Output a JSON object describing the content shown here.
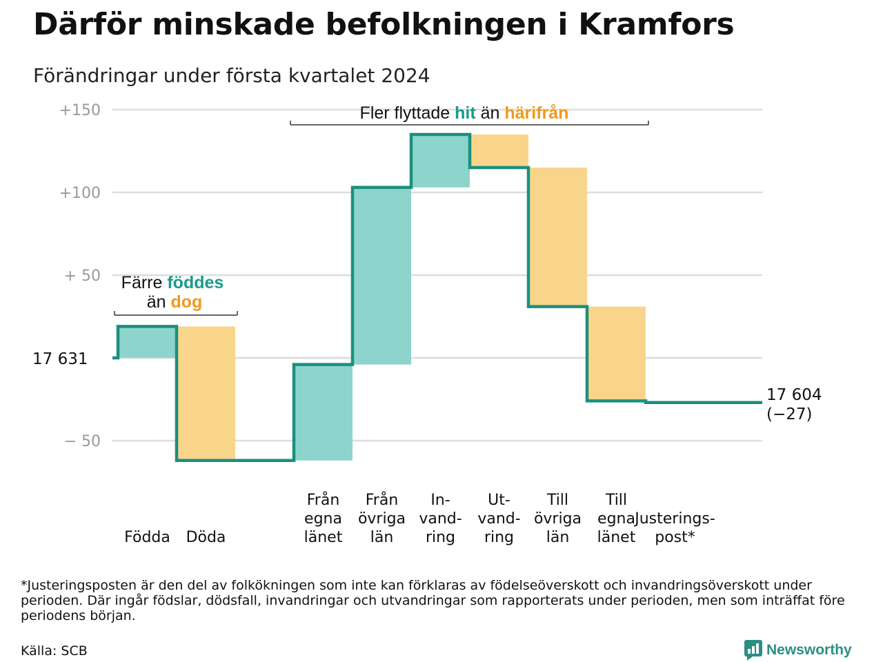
{
  "title": "Därför minskade befolkningen i Kramfors",
  "subtitle": "Förändringar under första kvartalet 2024",
  "footnote": "*Justeringsposten är den del av folkökningen som inte kan förklaras av födelseöverskott och invandringsöverskott under perioden. Där ingår födslar, dödsfall, invandringar och utvandringar som rapporterats under perioden, men som inträffat före periodens början.",
  "source": "Källa: SCB",
  "brand": "Newsworthy",
  "colors": {
    "increase": "#8dd5cc",
    "decrease": "#f9d58c",
    "line": "#1b8f7f",
    "hit": "#1b9a8a",
    "harifran": "#f09a1a",
    "grid": "#dddddd",
    "tick": "#999999"
  },
  "chart_data": {
    "type": "waterfall",
    "start_value": 17631,
    "end_value": 17604,
    "start_label": "17  631",
    "end_label_line1": "17 604",
    "end_label_line2": "(−27)",
    "y_ticks": [
      {
        "value": 150,
        "label": "+150"
      },
      {
        "value": 100,
        "label": "+100"
      },
      {
        "value": 50,
        "label": "+  50"
      },
      {
        "value": -50,
        "label": "−  50"
      }
    ],
    "ylim": [
      -70,
      155
    ],
    "steps": [
      {
        "label": [
          "Födda"
        ],
        "delta": 19,
        "kind": "increase"
      },
      {
        "label": [
          "Döda"
        ],
        "delta": -81,
        "kind": "decrease"
      },
      {
        "label": [],
        "delta": 0,
        "kind": "none"
      },
      {
        "label": [
          "Från",
          "egna",
          "länet"
        ],
        "delta": 58,
        "kind": "increase"
      },
      {
        "label": [
          "Från",
          "övriga",
          "län"
        ],
        "delta": 107,
        "kind": "increase"
      },
      {
        "label": [
          "In-",
          "vand-",
          "ring"
        ],
        "delta": 32,
        "kind": "increase"
      },
      {
        "label": [
          "Ut-",
          "vand-",
          "ring"
        ],
        "delta": -20,
        "kind": "decrease"
      },
      {
        "label": [
          "Till",
          "övriga",
          "län"
        ],
        "delta": -84,
        "kind": "decrease"
      },
      {
        "label": [
          "Till",
          "egna",
          "länet"
        ],
        "delta": -57,
        "kind": "decrease"
      },
      {
        "label": [
          "Justerings-",
          "post*"
        ],
        "delta": -1,
        "kind": "adjustment"
      }
    ],
    "annotations": [
      {
        "parts": [
          {
            "text": "Färre ",
            "style": "plain"
          },
          {
            "text": "föddes",
            "style": "hit"
          }
        ]
      },
      {
        "parts": [
          {
            "text": "än ",
            "style": "plain"
          },
          {
            "text": "dog",
            "style": "harifran"
          }
        ]
      },
      {
        "parts": [
          {
            "text": "Fler flyttade ",
            "style": "plain"
          },
          {
            "text": "hit",
            "style": "hit"
          },
          {
            "text": " än ",
            "style": "plain"
          },
          {
            "text": "härifrån",
            "style": "harifran"
          }
        ]
      }
    ]
  }
}
